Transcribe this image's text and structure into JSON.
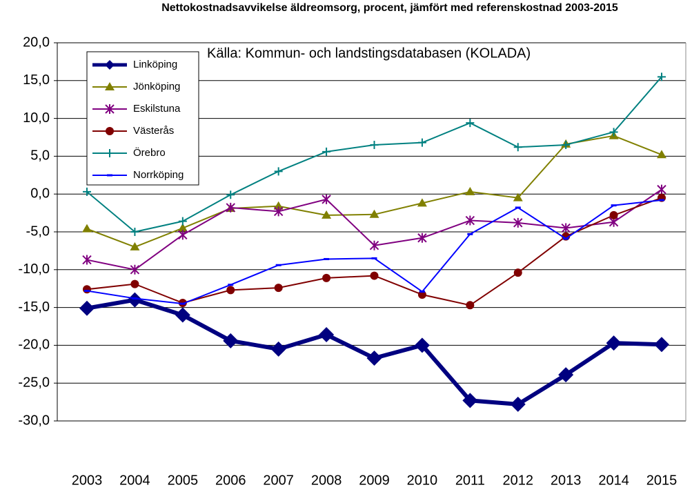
{
  "chart_data": {
    "type": "line",
    "title": "Nettokostnadsavvikelse äldreomsorg, procent, jämfört med referenskostnad 2003-2015",
    "annotation": "Källa: Kommun- och landstingsdatabasen (KOLADA)",
    "categories": [
      "2003",
      "2004",
      "2005",
      "2006",
      "2007",
      "2008",
      "2009",
      "2010",
      "2011",
      "2012",
      "2013",
      "2014",
      "2015"
    ],
    "ylim": [
      -30,
      20
    ],
    "yticks": [
      {
        "value": -30,
        "label": "-30,0"
      },
      {
        "value": -25,
        "label": "-25,0"
      },
      {
        "value": -20,
        "label": "-20,0"
      },
      {
        "value": -15,
        "label": "-15,0"
      },
      {
        "value": -10,
        "label": "-10,0"
      },
      {
        "value": -5,
        "label": "-5,0"
      },
      {
        "value": 0,
        "label": "0,0"
      },
      {
        "value": 5,
        "label": "5,0"
      },
      {
        "value": 10,
        "label": "10,0"
      },
      {
        "value": 15,
        "label": "15,0"
      },
      {
        "value": 20,
        "label": "20,0"
      }
    ],
    "grid": true,
    "legend": "upper left",
    "series": [
      {
        "name": "Linköping",
        "color": "#000080",
        "marker": "diamond",
        "values": [
          -15.1,
          -14.0,
          -16.0,
          -19.4,
          -20.5,
          -18.6,
          -21.7,
          -20.0,
          -27.3,
          -27.8,
          -23.9,
          -19.7,
          -19.9
        ]
      },
      {
        "name": "Jönköping",
        "color": "#808000",
        "marker": "triangle",
        "values": [
          -4.6,
          -7.0,
          -4.5,
          -1.9,
          -1.6,
          -2.8,
          -2.7,
          -1.2,
          0.3,
          -0.5,
          6.6,
          7.7,
          5.2
        ]
      },
      {
        "name": "Eskilstuna",
        "color": "#800080",
        "marker": "star",
        "values": [
          -8.7,
          -10.0,
          -5.4,
          -1.8,
          -2.3,
          -0.7,
          -6.8,
          -5.8,
          -3.5,
          -3.8,
          -4.5,
          -3.7,
          0.6
        ]
      },
      {
        "name": "Västerås",
        "color": "#800000",
        "marker": "circle",
        "values": [
          -12.6,
          -11.9,
          -14.4,
          -12.7,
          -12.4,
          -11.1,
          -10.8,
          -13.3,
          -14.7,
          -10.4,
          -5.6,
          -2.8,
          -0.5
        ]
      },
      {
        "name": "Örebro",
        "color": "#008080",
        "marker": "plus",
        "values": [
          0.3,
          -5.0,
          -3.6,
          -0.1,
          3.0,
          5.6,
          6.5,
          6.8,
          9.4,
          6.2,
          6.5,
          8.2,
          15.5
        ]
      },
      {
        "name": "Norrköping",
        "color": "#0000ff",
        "marker": "dash",
        "values": [
          -12.8,
          -13.8,
          -14.5,
          -12.0,
          -9.4,
          -8.6,
          -8.5,
          -12.9,
          -5.3,
          -1.8,
          -5.9,
          -1.5,
          -0.8
        ]
      }
    ]
  }
}
